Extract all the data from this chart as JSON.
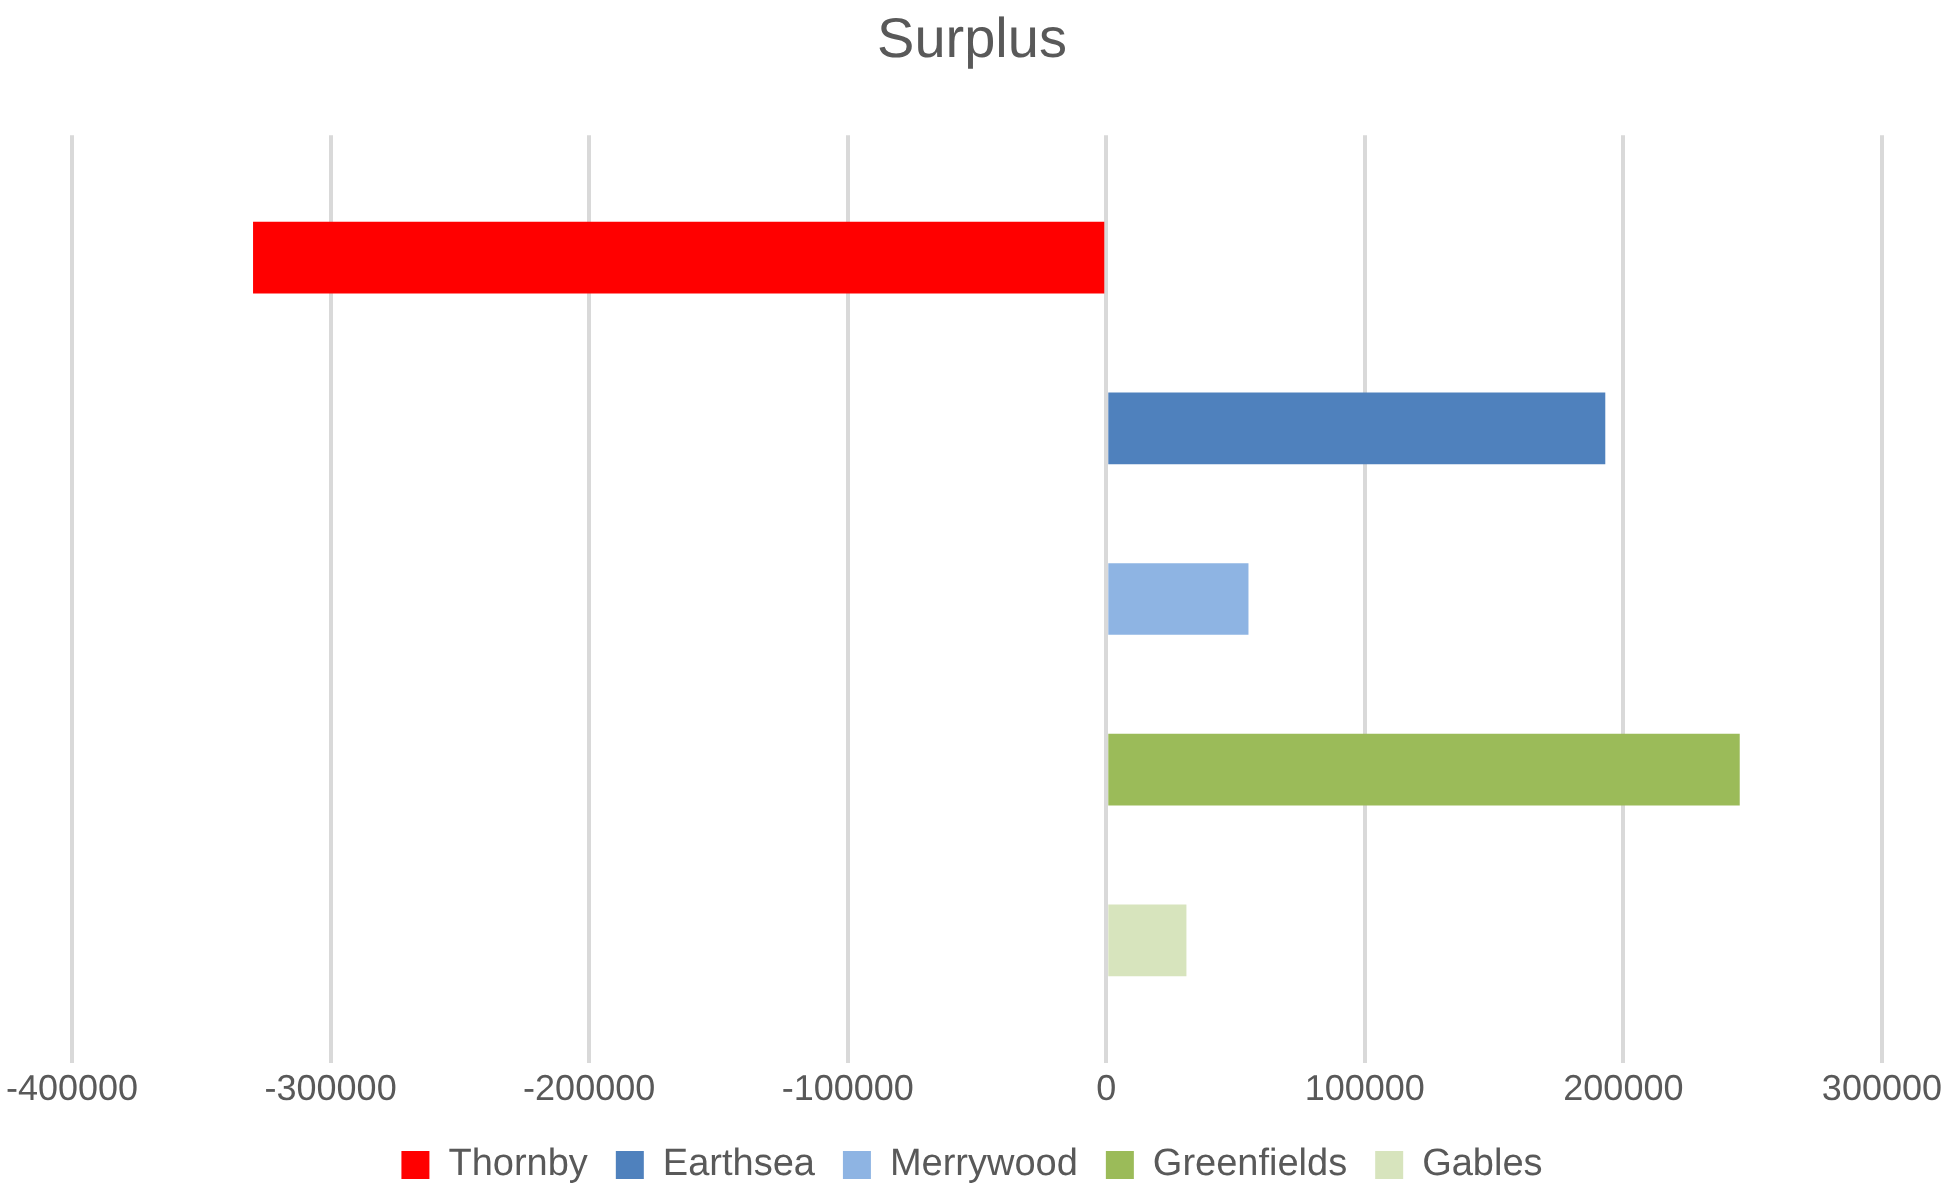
{
  "chart_data": {
    "type": "bar",
    "orientation": "horizontal",
    "title": "Surplus",
    "categories": [
      null
    ],
    "series": [
      {
        "name": "Thornby",
        "color": "#ff0000",
        "values": [
          -330000
        ]
      },
      {
        "name": "Earthsea",
        "color": "#4f81bd",
        "values": [
          193000
        ]
      },
      {
        "name": "Merrywood",
        "color": "#8eb4e3",
        "values": [
          55000
        ]
      },
      {
        "name": "Greenfields",
        "color": "#9bbb59",
        "values": [
          245000
        ]
      },
      {
        "name": "Gables",
        "color": "#d7e4bd",
        "values": [
          31000
        ]
      }
    ],
    "xlim": [
      -400000,
      300000
    ],
    "xticks": [
      -400000,
      -300000,
      -200000,
      -100000,
      0,
      100000,
      200000,
      300000
    ],
    "grid": "x",
    "legend": "bottom"
  }
}
